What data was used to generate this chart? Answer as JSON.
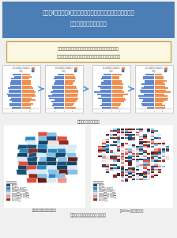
{
  "title_line1": "小地域(町丁・字)を単位とした将来人口・世帯予測ツールの",
  "title_line2": "アウトプットのイメージ",
  "title_bg": "#4a7eb5",
  "title_text_color": "#ffffff",
  "notice_text_line1": "本ツールに付属のプログラムにより、予測結果について、",
  "notice_text_line2": "次のようなグラフやマップを作成することなどが可能です。",
  "notice_bg": "#fdf8e1",
  "notice_border": "#c8a84b",
  "fig1_label": "図１　人口ピラミッド",
  "fig2_label": "図２　人口予測結果のマップ表示例",
  "map_left_label": "【小地域（町丁・字）単位】",
  "map_right_label": "【100mメッシュ単位】",
  "legend_title": "変化人口（人）",
  "bg_color": "#f0f0f0",
  "content_bg": "#ffffff"
}
